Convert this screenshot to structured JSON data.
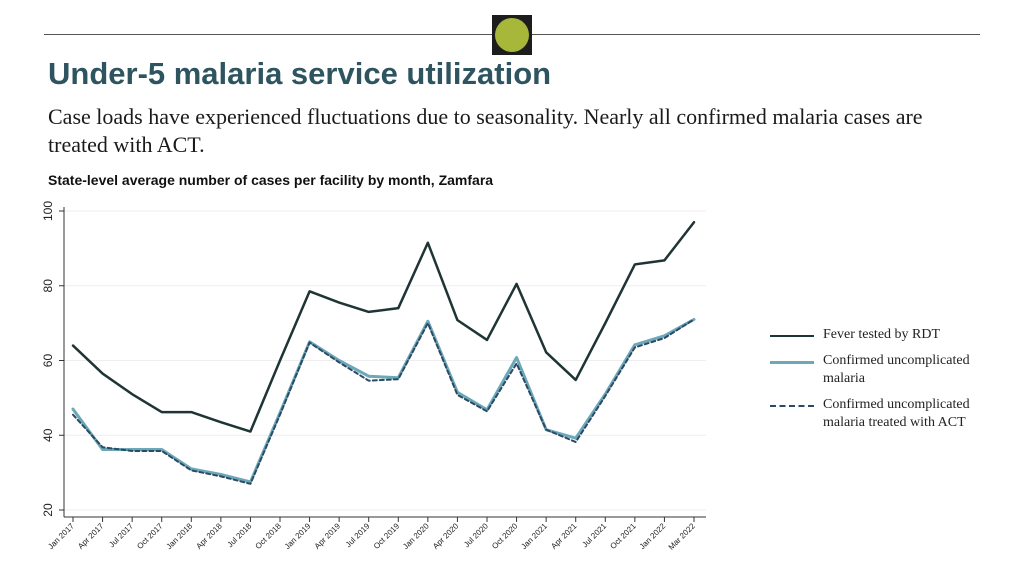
{
  "header": {
    "title": "Under-5 malaria service utilization",
    "subtitle": "Case loads have experienced fluctuations due to seasonality. Nearly all confirmed malaria cases are treated with ACT."
  },
  "colors": {
    "title": "#2e5460",
    "badge_dark": "#1d1d1d",
    "badge_dot": "#a6b73a"
  },
  "chart_data": {
    "type": "line",
    "title": "State-level average number of cases per facility by month, Zamfara",
    "xlabel": "",
    "ylabel": "",
    "ylim": [
      20,
      100
    ],
    "yticks": [
      20,
      40,
      60,
      80,
      100
    ],
    "grid": true,
    "legend_position": "right",
    "categories": [
      "Jan 2017",
      "Apr 2017",
      "Jul 2017",
      "Oct 2017",
      "Jan 2018",
      "Apr 2018",
      "Jul 2018",
      "Oct 2018",
      "Jan 2019",
      "Apr 2019",
      "Jul 2019",
      "Oct 2019",
      "Jan 2020",
      "Apr 2020",
      "Jul 2020",
      "Oct 2020",
      "Jan 2021",
      "Apr 2021",
      "Jul 2021",
      "Oct 2021",
      "Jan 2022",
      "Mar 2022"
    ],
    "series": [
      {
        "name": "Fever tested by RDT",
        "color": "#1f3535",
        "dash": "solid",
        "values": [
          64,
          56.5,
          51,
          46.2,
          46.2,
          43.5,
          41,
          60,
          78.5,
          75.5,
          73,
          74,
          91.5,
          70.8,
          65.5,
          80.5,
          62.2,
          54.8,
          70,
          85.7,
          86.8,
          97
        ]
      },
      {
        "name": "Confirmed uncomplicated malaria",
        "color": "#6ba8b8",
        "dash": "solid",
        "values": [
          47,
          36.2,
          36.2,
          36.2,
          31,
          29.5,
          27.5,
          46,
          65,
          60,
          55.8,
          55.4,
          70.5,
          51.5,
          46.8,
          60.8,
          41.5,
          39.2,
          51,
          64.2,
          66.6,
          71
        ]
      },
      {
        "name": "Confirmed uncomplicated malaria treated with ACT",
        "color": "#2c4a66",
        "dash": "dashed",
        "values": [
          45.5,
          36.8,
          35.8,
          35.8,
          30.6,
          29,
          27,
          45.5,
          64.8,
          59.5,
          54.6,
          55,
          70,
          50.8,
          46.4,
          59.2,
          41.5,
          38.2,
          50.5,
          63.5,
          66,
          71
        ]
      }
    ],
    "x_slots": 22
  }
}
